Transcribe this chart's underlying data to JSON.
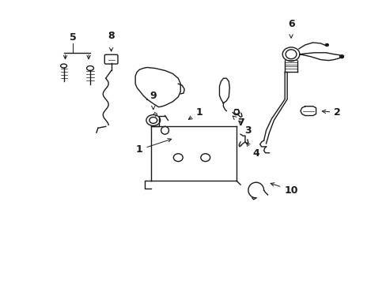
{
  "background_color": "#ffffff",
  "fig_width": 4.89,
  "fig_height": 3.6,
  "dpi": 100,
  "line_color": "#1a1a1a",
  "lw": 1.0,
  "lw_thick": 1.5
}
